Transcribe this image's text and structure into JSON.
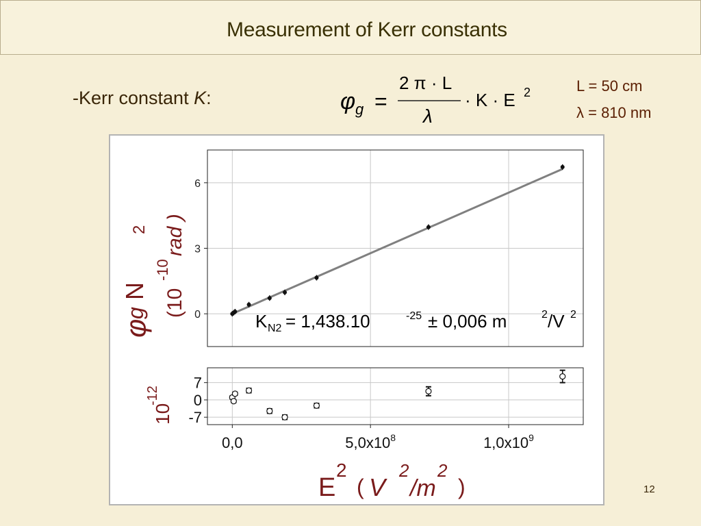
{
  "slide": {
    "title": "Measurement of Kerr constants",
    "kerr_label_prefix": "-Kerr constant ",
    "kerr_label_symbol": "K",
    "kerr_label_suffix": ":",
    "formula": {
      "lhs_symbol": "φ",
      "lhs_subscript": "g",
      "equals": "=",
      "numerator": "2 π · L",
      "denominator": "λ",
      "rhs": "· K · E",
      "rhs_exponent": "2"
    },
    "params": [
      "L = 50 cm",
      "λ = 810 nm"
    ],
    "page_number": "12"
  },
  "chart_data": [
    {
      "type": "scatter",
      "panel": "main",
      "ylabel_parts": {
        "phi": "φ",
        "phi_sub": "g",
        "gas": "N",
        "gas_sub": "2",
        "unit_prefix": "(10",
        "unit_exp": "-10",
        "unit": "rad )"
      },
      "x": [
        0.0,
        5000000.0,
        10000000.0,
        60000000.0,
        135000000.0,
        190000000.0,
        305000000.0,
        710000000.0,
        1195000000.0
      ],
      "y": [
        0.0,
        0.05,
        0.1,
        0.42,
        0.72,
        0.98,
        1.65,
        3.97,
        6.72
      ],
      "fit_line": {
        "x": [
          0.0,
          1195000000.0
        ],
        "y": [
          0.0,
          6.63
        ]
      },
      "xlim": [
        -90000000.0,
        1270000000.0
      ],
      "ylim": [
        -1.5,
        7.5
      ],
      "yticks": [
        0,
        3,
        6
      ],
      "ytick_labels": [
        "0",
        "3",
        "6"
      ],
      "grid": true,
      "annotation": {
        "prefix": "K",
        "sub": "N2",
        "mid": " = 1,438.10",
        "exp": "-25",
        "suffix": " ± 0,006 m",
        "exp2": "2",
        "suffix2": "/V",
        "exp3": "2"
      }
    },
    {
      "type": "scatter",
      "panel": "residuals",
      "ylabel_parts": {
        "base": "10",
        "exp": "-12"
      },
      "x": [
        0.0,
        5000000.0,
        10000000.0,
        60000000.0,
        135000000.0,
        190000000.0,
        305000000.0,
        710000000.0,
        1195000000.0
      ],
      "y": [
        1.0,
        -0.5,
        2.5,
        3.8,
        -4.5,
        -7.0,
        -2.3,
        3.5,
        9.5
      ],
      "yerr": [
        0.6,
        0.6,
        0.6,
        0.9,
        0.9,
        0.9,
        0.9,
        1.8,
        2.5
      ],
      "xlim": [
        -90000000.0,
        1270000000.0
      ],
      "ylim": [
        -10,
        13
      ],
      "yticks": [
        -7,
        0,
        7
      ],
      "ytick_labels": [
        "-7",
        "0",
        "7"
      ],
      "xticks": [
        0.0,
        500000000.0,
        1000000000.0
      ],
      "xtick_labels": [
        {
          "base": "0,0",
          "exp": ""
        },
        {
          "base": "5,0x10",
          "exp": "8"
        },
        {
          "base": "1,0x10",
          "exp": "9"
        }
      ],
      "xlabel_parts": {
        "E": "E",
        "E_exp": "2",
        "open": "(",
        "V": "V",
        "V_exp": "2",
        "slash": "/m",
        "m_exp": "2",
        "close": ")"
      },
      "grid": true
    }
  ]
}
